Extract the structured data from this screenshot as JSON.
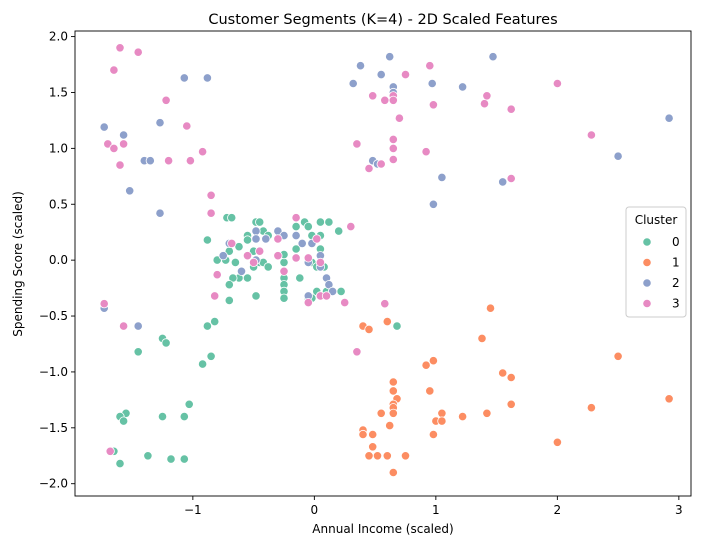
{
  "chart_data": {
    "type": "scatter",
    "title": "Customer Segments (K=4) - 2D Scaled Features",
    "xlabel": "Annual Income (scaled)",
    "ylabel": "Spending Score (scaled)",
    "xlim": [
      -1.97,
      3.1
    ],
    "ylim": [
      -2.11,
      2.05
    ],
    "xticks": [
      -1,
      0,
      1,
      2,
      3
    ],
    "yticks": [
      -2.0,
      -1.5,
      -1.0,
      -0.5,
      0.0,
      0.5,
      1.0,
      1.5,
      2.0
    ],
    "ytick_labels": [
      "−2.0",
      "−1.5",
      "−1.0",
      "−0.5",
      "0.0",
      "0.5",
      "1.0",
      "1.5",
      "2.0"
    ],
    "xtick_labels": [
      "−1",
      "0",
      "1",
      "2",
      "3"
    ],
    "grid": false,
    "legend": {
      "title": "Cluster",
      "placement": "center-right"
    },
    "series": [
      {
        "name": "0",
        "color": "#66c2a5",
        "points": [
          [
            -0.88,
            0.18
          ],
          [
            -0.72,
            0.38
          ],
          [
            -0.68,
            0.38
          ],
          [
            -0.55,
            0.22
          ],
          [
            -0.55,
            0.18
          ],
          [
            -0.48,
            0.34
          ],
          [
            -0.45,
            0.34
          ],
          [
            -0.42,
            0.26
          ],
          [
            -0.38,
            0.22
          ],
          [
            -0.5,
            0.08
          ],
          [
            -0.62,
            0.12
          ],
          [
            -0.7,
            0.08
          ],
          [
            -0.73,
            0.0
          ],
          [
            -0.8,
            0.0
          ],
          [
            -0.65,
            -0.02
          ],
          [
            -0.62,
            -0.16
          ],
          [
            -0.67,
            -0.16
          ],
          [
            -0.7,
            -0.22
          ],
          [
            -0.55,
            -0.16
          ],
          [
            -0.5,
            -0.06
          ],
          [
            -0.45,
            -0.02
          ],
          [
            -0.42,
            -0.02
          ],
          [
            -0.38,
            -0.06
          ],
          [
            -0.25,
            -0.02
          ],
          [
            -0.25,
            0.05
          ],
          [
            -0.25,
            -0.1
          ],
          [
            -0.25,
            -0.16
          ],
          [
            -0.25,
            -0.22
          ],
          [
            -0.25,
            -0.28
          ],
          [
            -0.25,
            -0.34
          ],
          [
            -0.15,
            0.3
          ],
          [
            -0.15,
            0.1
          ],
          [
            -0.12,
            -0.16
          ],
          [
            -0.08,
            0.34
          ],
          [
            -0.05,
            0.3
          ],
          [
            -0.02,
            0.22
          ],
          [
            0.05,
            0.34
          ],
          [
            0.05,
            0.22
          ],
          [
            0.12,
            0.34
          ],
          [
            0.2,
            0.26
          ],
          [
            0.05,
            0.1
          ],
          [
            0.05,
            -0.02
          ],
          [
            0.08,
            -0.06
          ],
          [
            0.1,
            -0.16
          ],
          [
            -0.02,
            -0.02
          ],
          [
            0.02,
            -0.06
          ],
          [
            0.02,
            -0.28
          ],
          [
            0.1,
            -0.28
          ],
          [
            0.15,
            -0.28
          ],
          [
            0.22,
            -0.28
          ],
          [
            -0.05,
            -0.34
          ],
          [
            -0.02,
            -0.34
          ],
          [
            -0.7,
            -0.36
          ],
          [
            -0.48,
            -0.32
          ],
          [
            -0.82,
            -0.55
          ],
          [
            -0.88,
            -0.59
          ],
          [
            -1.25,
            -0.7
          ],
          [
            -1.22,
            -0.74
          ],
          [
            -1.45,
            -0.82
          ],
          [
            -0.85,
            -0.86
          ],
          [
            -0.92,
            -0.93
          ],
          [
            -1.03,
            -1.29
          ],
          [
            -1.07,
            -1.4
          ],
          [
            -1.25,
            -1.4
          ],
          [
            -1.55,
            -1.37
          ],
          [
            -1.6,
            -1.4
          ],
          [
            -1.57,
            -1.44
          ],
          [
            -1.37,
            -1.75
          ],
          [
            -1.65,
            -1.71
          ],
          [
            -1.18,
            -1.78
          ],
          [
            -1.07,
            -1.78
          ],
          [
            -1.6,
            -1.82
          ],
          [
            0.68,
            -0.59
          ]
        ]
      },
      {
        "name": "1",
        "color": "#fc8d62",
        "points": [
          [
            0.4,
            -0.59
          ],
          [
            0.45,
            -0.62
          ],
          [
            0.6,
            -0.55
          ],
          [
            0.92,
            -0.94
          ],
          [
            0.98,
            -0.9
          ],
          [
            0.95,
            -1.17
          ],
          [
            1.38,
            -0.7
          ],
          [
            1.45,
            -0.43
          ],
          [
            1.55,
            -1.01
          ],
          [
            1.62,
            -1.05
          ],
          [
            2.5,
            -0.86
          ],
          [
            2.92,
            -1.24
          ],
          [
            0.65,
            -1.09
          ],
          [
            0.65,
            -1.17
          ],
          [
            0.68,
            -1.24
          ],
          [
            0.65,
            -1.29
          ],
          [
            0.65,
            -1.32
          ],
          [
            0.65,
            -1.37
          ],
          [
            0.55,
            -1.37
          ],
          [
            1.05,
            -1.37
          ],
          [
            1.22,
            -1.4
          ],
          [
            1.42,
            -1.37
          ],
          [
            1.62,
            -1.29
          ],
          [
            2.28,
            -1.32
          ],
          [
            0.4,
            -1.52
          ],
          [
            0.4,
            -1.56
          ],
          [
            0.48,
            -1.56
          ],
          [
            0.48,
            -1.67
          ],
          [
            0.52,
            -1.75
          ],
          [
            0.6,
            -1.75
          ],
          [
            0.62,
            -1.48
          ],
          [
            0.75,
            -1.75
          ],
          [
            0.98,
            -1.56
          ],
          [
            1.0,
            -1.44
          ],
          [
            1.05,
            -1.44
          ],
          [
            0.65,
            -1.9
          ],
          [
            2.0,
            -1.63
          ],
          [
            0.45,
            -1.75
          ]
        ]
      },
      {
        "name": "2",
        "color": "#8da0cb",
        "points": [
          [
            -1.73,
            1.19
          ],
          [
            -1.57,
            1.12
          ],
          [
            -1.52,
            0.62
          ],
          [
            -1.4,
            0.89
          ],
          [
            -1.35,
            0.89
          ],
          [
            -1.27,
            1.23
          ],
          [
            -1.27,
            0.42
          ],
          [
            -1.07,
            1.63
          ],
          [
            -0.88,
            1.63
          ],
          [
            -0.48,
            0.26
          ],
          [
            -0.4,
            0.19
          ],
          [
            -0.3,
            0.26
          ],
          [
            -0.48,
            0.19
          ],
          [
            -0.25,
            0.22
          ],
          [
            -0.15,
            0.22
          ],
          [
            -0.1,
            0.15
          ],
          [
            -0.02,
            0.15
          ],
          [
            0.05,
            0.04
          ],
          [
            -0.05,
            -0.02
          ],
          [
            0.05,
            -0.06
          ],
          [
            0.1,
            -0.16
          ],
          [
            -0.05,
            -0.32
          ],
          [
            0.12,
            -0.22
          ],
          [
            0.15,
            -0.28
          ],
          [
            -0.7,
            0.15
          ],
          [
            -0.75,
            0.04
          ],
          [
            -0.48,
            0.0
          ],
          [
            -0.6,
            -0.1
          ],
          [
            0.32,
            1.58
          ],
          [
            0.38,
            1.74
          ],
          [
            0.55,
            1.66
          ],
          [
            0.62,
            1.82
          ],
          [
            0.65,
            1.55
          ],
          [
            0.65,
            1.5
          ],
          [
            0.97,
            1.58
          ],
          [
            1.22,
            1.55
          ],
          [
            1.47,
            1.82
          ],
          [
            0.48,
            0.89
          ],
          [
            0.52,
            0.86
          ],
          [
            1.05,
            0.74
          ],
          [
            0.98,
            0.5
          ],
          [
            1.55,
            0.7
          ],
          [
            2.5,
            0.93
          ],
          [
            2.92,
            1.27
          ],
          [
            -1.45,
            -0.59
          ],
          [
            -1.73,
            -0.43
          ]
        ]
      },
      {
        "name": "3",
        "color": "#e78ac3",
        "points": [
          [
            -1.6,
            1.9
          ],
          [
            -1.45,
            1.86
          ],
          [
            -1.65,
            1.7
          ],
          [
            -1.22,
            1.43
          ],
          [
            -1.05,
            1.2
          ],
          [
            -1.57,
            1.04
          ],
          [
            -1.7,
            1.04
          ],
          [
            -1.65,
            1.0
          ],
          [
            -1.6,
            0.85
          ],
          [
            -1.2,
            0.89
          ],
          [
            -1.02,
            0.89
          ],
          [
            -0.92,
            0.97
          ],
          [
            -0.85,
            0.58
          ],
          [
            -0.85,
            0.42
          ],
          [
            -0.15,
            0.38
          ],
          [
            0.3,
            0.3
          ],
          [
            -0.68,
            0.15
          ],
          [
            -0.55,
            0.04
          ],
          [
            -0.5,
            -0.02
          ],
          [
            -0.45,
            0.08
          ],
          [
            -0.3,
            0.19
          ],
          [
            -0.3,
            0.04
          ],
          [
            -0.25,
            -0.1
          ],
          [
            -0.15,
            0.02
          ],
          [
            -0.05,
            0.02
          ],
          [
            0.02,
            0.19
          ],
          [
            -0.8,
            -0.13
          ],
          [
            -0.82,
            -0.32
          ],
          [
            -0.05,
            -0.38
          ],
          [
            0.05,
            -0.32
          ],
          [
            0.1,
            -0.32
          ],
          [
            0.25,
            -0.38
          ],
          [
            0.35,
            1.04
          ],
          [
            0.45,
            0.82
          ],
          [
            0.55,
            0.86
          ],
          [
            0.48,
            1.47
          ],
          [
            0.58,
            1.43
          ],
          [
            0.65,
            1.47
          ],
          [
            0.65,
            1.08
          ],
          [
            0.65,
            1.0
          ],
          [
            0.65,
            0.9
          ],
          [
            0.7,
            1.27
          ],
          [
            0.75,
            1.66
          ],
          [
            0.95,
            1.74
          ],
          [
            0.98,
            1.39
          ],
          [
            0.92,
            0.97
          ],
          [
            1.4,
            1.4
          ],
          [
            1.42,
            1.47
          ],
          [
            1.62,
            1.35
          ],
          [
            2.0,
            1.58
          ],
          [
            2.28,
            1.12
          ],
          [
            1.62,
            0.73
          ],
          [
            -1.73,
            -0.39
          ],
          [
            -1.57,
            -0.59
          ],
          [
            -1.68,
            -1.71
          ],
          [
            0.35,
            -0.82
          ],
          [
            0.58,
            -0.39
          ],
          [
            0.05,
            -0.02
          ],
          [
            0.65,
            1.43
          ]
        ]
      }
    ]
  }
}
